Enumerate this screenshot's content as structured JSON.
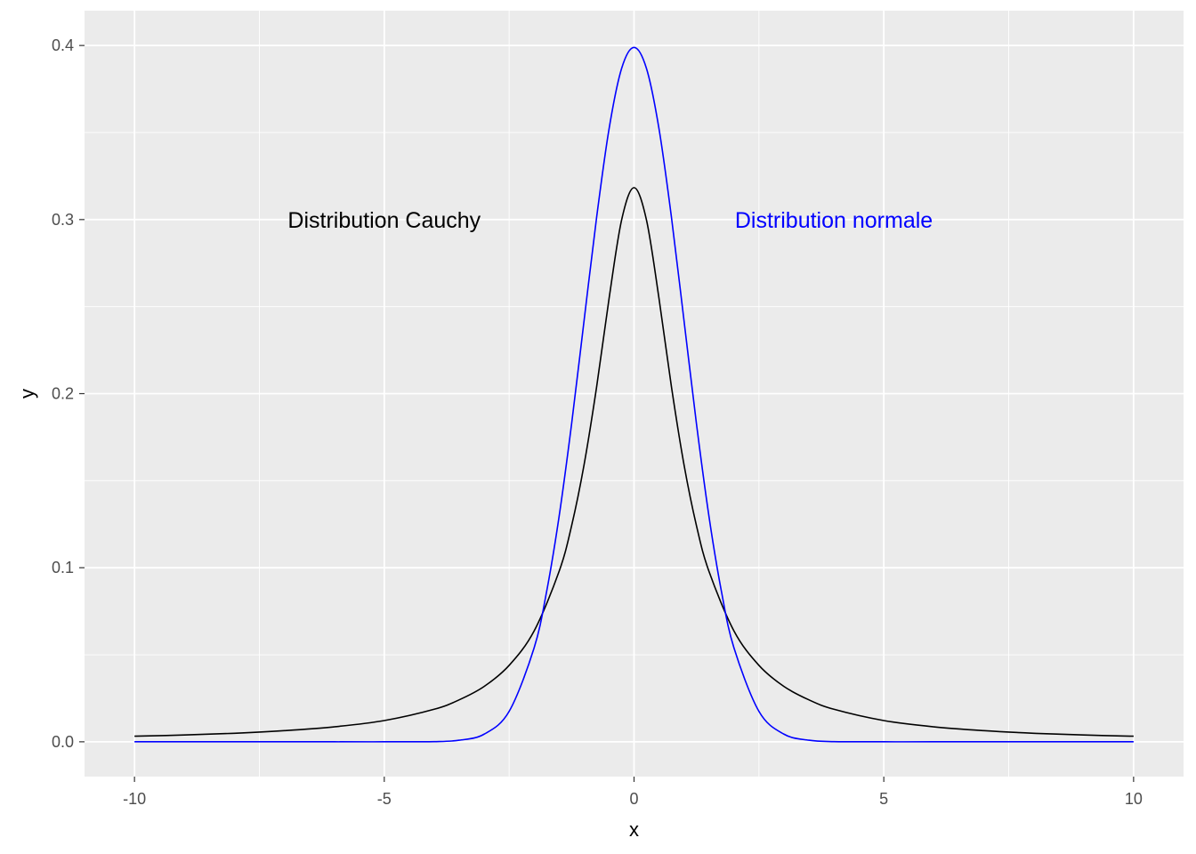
{
  "chart_data": {
    "type": "line",
    "xlabel": "x",
    "ylabel": "y",
    "xlim": [
      -11,
      11
    ],
    "ylim": [
      -0.02,
      0.42
    ],
    "x_ticks": [
      -10,
      -5,
      0,
      5,
      10
    ],
    "x_tick_labels": [
      "-10",
      "-5",
      "0",
      "5",
      "10"
    ],
    "y_ticks": [
      0.0,
      0.1,
      0.2,
      0.3,
      0.4
    ],
    "y_tick_labels": [
      "0.0",
      "0.1",
      "0.2",
      "0.3",
      "0.4"
    ],
    "grid": true,
    "background_color": "#ebebeb",
    "series": [
      {
        "color": "#000000",
        "x": [
          -10,
          -9,
          -8,
          -7,
          -6,
          -5,
          -4,
          -3.5,
          -3,
          -2.5,
          -2,
          -1.5,
          -1.25,
          -1,
          -0.75,
          -0.5,
          -0.25,
          0,
          0.25,
          0.5,
          0.75,
          1,
          1.25,
          1.5,
          2,
          2.5,
          3,
          3.5,
          4,
          5,
          6,
          7,
          8,
          9,
          10
        ],
        "y": [
          0.0032,
          0.0039,
          0.0049,
          0.0064,
          0.0086,
          0.0122,
          0.0187,
          0.0241,
          0.0318,
          0.0439,
          0.0637,
          0.0979,
          0.1241,
          0.1592,
          0.2037,
          0.2546,
          0.2996,
          0.3183,
          0.2996,
          0.2546,
          0.2037,
          0.1592,
          0.1241,
          0.0979,
          0.0637,
          0.0439,
          0.0318,
          0.0241,
          0.0187,
          0.0122,
          0.0086,
          0.0064,
          0.0049,
          0.0039,
          0.0032
        ]
      },
      {
        "color": "#0000ff",
        "x": [
          -10,
          -6,
          -5,
          -4,
          -3.5,
          -3,
          -2.5,
          -2,
          -1.75,
          -1.5,
          -1.25,
          -1,
          -0.75,
          -0.5,
          -0.25,
          0,
          0.25,
          0.5,
          0.75,
          1,
          1.25,
          1.5,
          1.75,
          2,
          2.5,
          3,
          3.5,
          4,
          5,
          6,
          10
        ],
        "y": [
          0,
          0,
          0,
          0.0001,
          0.0009,
          0.0044,
          0.0175,
          0.054,
          0.0863,
          0.1295,
          0.1826,
          0.242,
          0.3011,
          0.3521,
          0.3867,
          0.3989,
          0.3867,
          0.3521,
          0.3011,
          0.242,
          0.1826,
          0.1295,
          0.0863,
          0.054,
          0.0175,
          0.0044,
          0.0009,
          0.0001,
          0,
          0,
          0
        ]
      }
    ],
    "annotations": [
      {
        "text": "Distribution Cauchy",
        "x": -5,
        "y": 0.3,
        "color": "#000000"
      },
      {
        "text": "Distribution normale",
        "x": 4,
        "y": 0.3,
        "color": "#0000ff"
      }
    ]
  }
}
